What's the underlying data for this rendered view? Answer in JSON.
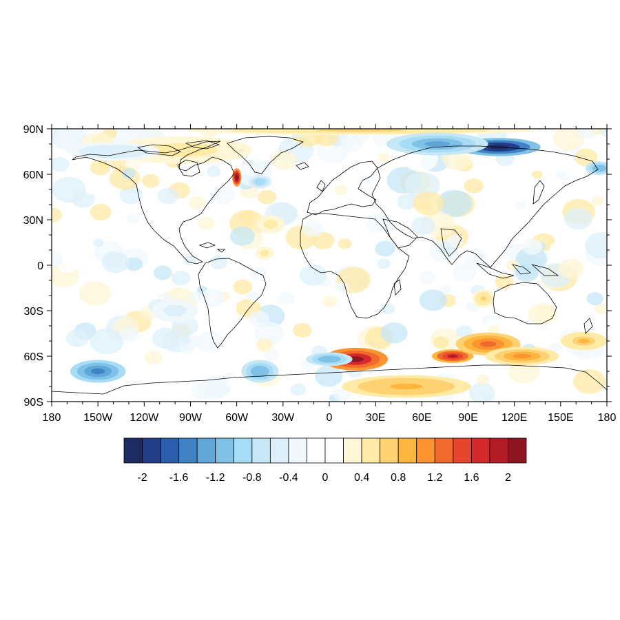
{
  "map": {
    "projection": "equirectangular",
    "lon_range": [
      -180,
      180
    ],
    "lat_range": [
      -90,
      90
    ],
    "x_ticks": [
      {
        "lon": -180,
        "label": "180"
      },
      {
        "lon": -150,
        "label": "150W"
      },
      {
        "lon": -120,
        "label": "120W"
      },
      {
        "lon": -90,
        "label": "90W"
      },
      {
        "lon": -60,
        "label": "60W"
      },
      {
        "lon": -30,
        "label": "30W"
      },
      {
        "lon": 0,
        "label": "0"
      },
      {
        "lon": 30,
        "label": "30E"
      },
      {
        "lon": 60,
        "label": "60E"
      },
      {
        "lon": 90,
        "label": "90E"
      },
      {
        "lon": 120,
        "label": "120E"
      },
      {
        "lon": 150,
        "label": "150E"
      },
      {
        "lon": 180,
        "label": "180"
      }
    ],
    "y_ticks": [
      {
        "lat": 90,
        "label": "90N"
      },
      {
        "lat": 60,
        "label": "60N"
      },
      {
        "lat": 30,
        "label": "30N"
      },
      {
        "lat": 0,
        "label": "0"
      },
      {
        "lat": -30,
        "label": "30S"
      },
      {
        "lat": -60,
        "label": "60S"
      },
      {
        "lat": -90,
        "label": "90S"
      }
    ],
    "anomaly_regions": [
      {
        "lon": 17,
        "lat": -62,
        "rx": 14,
        "ry": 5,
        "value": 2.0
      },
      {
        "lon": 80,
        "lat": -60,
        "rx": 9,
        "ry": 3,
        "value": 1.8
      },
      {
        "lon": 103,
        "lat": -52,
        "rx": 14,
        "ry": 5,
        "value": 1.2
      },
      {
        "lon": 50,
        "lat": -80,
        "rx": 28,
        "ry": 5,
        "value": 0.9
      },
      {
        "lon": 125,
        "lat": -60,
        "rx": 16,
        "ry": 4,
        "value": 1.0
      },
      {
        "lon": 165,
        "lat": -50,
        "rx": 10,
        "ry": 4,
        "value": 0.8
      },
      {
        "lon": -60,
        "lat": 58,
        "rx": 2,
        "ry": 4,
        "value": 2.2
      },
      {
        "lon": -95,
        "lat": 76,
        "rx": 30,
        "ry": 6,
        "value": 0.5
      },
      {
        "lon": 20,
        "lat": 89,
        "rx": 75,
        "ry": 2,
        "value": 0.6
      },
      {
        "lon": -38,
        "lat": 27,
        "rx": 6,
        "ry": 4,
        "value": 0.5
      },
      {
        "lon": -42,
        "lat": 8,
        "rx": 4,
        "ry": 3,
        "value": 0.5
      },
      {
        "lon": 100,
        "lat": -22,
        "rx": 5,
        "ry": 4,
        "value": 0.6
      },
      {
        "lon": 110,
        "lat": 78,
        "rx": 18,
        "ry": 4,
        "value": -2.2
      },
      {
        "lon": 70,
        "lat": 80,
        "rx": 22,
        "ry": 5,
        "value": -1.4
      },
      {
        "lon": -150,
        "lat": -70,
        "rx": 12,
        "ry": 5,
        "value": -1.6
      },
      {
        "lon": -45,
        "lat": -70,
        "rx": 8,
        "ry": 5,
        "value": -1.2
      },
      {
        "lon": 0,
        "lat": -62,
        "rx": 10,
        "ry": 3,
        "value": -1.2
      },
      {
        "lon": 175,
        "lat": 64,
        "rx": 6,
        "ry": 3,
        "value": -1.2
      },
      {
        "lon": -45,
        "lat": 55,
        "rx": 5,
        "ry": 3,
        "value": -1.0
      },
      {
        "lon": -140,
        "lat": 75,
        "rx": 20,
        "ry": 4,
        "value": -0.6
      },
      {
        "lon": -100,
        "lat": -30,
        "rx": 10,
        "ry": 5,
        "value": -0.5
      }
    ],
    "coastline_color": "#000000",
    "frame_color": "#000000"
  },
  "colorbar": {
    "colors": [
      "#1f2b63",
      "#223f8c",
      "#2b5fad",
      "#3f83c4",
      "#5fa6d9",
      "#7fc1e7",
      "#a6dcf5",
      "#c6e7f6",
      "#ddf0f9",
      "#f0f8fc",
      "#ffffff",
      "#ffffff",
      "#fff6d6",
      "#ffeaa6",
      "#fed270",
      "#fdb53e",
      "#fa9330",
      "#f06a2e",
      "#e6452e",
      "#d52a2b",
      "#b51d26",
      "#8e1620"
    ],
    "labels": [
      "-2",
      "-1.6",
      "-1.2",
      "-0.8",
      "-0.4",
      "0",
      "0.4",
      "0.8",
      "1.2",
      "1.6",
      "2"
    ]
  }
}
